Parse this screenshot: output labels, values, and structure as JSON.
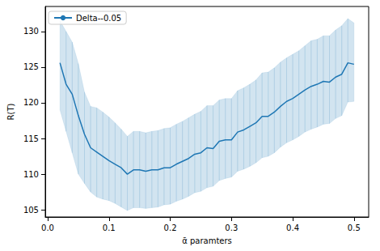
{
  "chart_data": {
    "type": "line",
    "x_label": "ᾱ paramters",
    "y_label": "R(T)",
    "x": [
      0.02,
      0.03,
      0.04,
      0.05,
      0.06,
      0.07,
      0.08,
      0.09,
      0.1,
      0.11,
      0.12,
      0.13,
      0.14,
      0.15,
      0.16,
      0.17,
      0.18,
      0.19,
      0.2,
      0.21,
      0.22,
      0.23,
      0.24,
      0.25,
      0.26,
      0.27,
      0.28,
      0.29,
      0.3,
      0.31,
      0.32,
      0.33,
      0.34,
      0.35,
      0.36,
      0.37,
      0.38,
      0.39,
      0.4,
      0.41,
      0.42,
      0.43,
      0.44,
      0.45,
      0.46,
      0.47,
      0.48,
      0.49,
      0.5
    ],
    "series": [
      {
        "name": "Delta--0.05",
        "color": "#1f77b4",
        "values": [
          125.6,
          122.6,
          121.2,
          118.2,
          115.6,
          113.7,
          113.1,
          112.5,
          111.9,
          111.4,
          110.9,
          110.0,
          110.6,
          110.6,
          110.4,
          110.6,
          110.6,
          110.9,
          110.9,
          111.4,
          111.8,
          112.2,
          112.8,
          113.0,
          113.7,
          113.6,
          114.6,
          114.8,
          114.8,
          115.9,
          116.2,
          116.7,
          117.2,
          118.1,
          118.1,
          118.7,
          119.5,
          120.2,
          120.6,
          121.2,
          121.8,
          122.3,
          122.6,
          123.0,
          122.9,
          123.6,
          124.0,
          125.6,
          125.4
        ],
        "lower": [
          119.0,
          116.0,
          113.0,
          110.0,
          108.7,
          107.5,
          106.8,
          106.5,
          106.3,
          105.9,
          105.4,
          104.9,
          105.3,
          105.3,
          105.2,
          105.3,
          105.4,
          105.7,
          105.8,
          106.2,
          106.5,
          106.9,
          107.4,
          107.6,
          108.1,
          108.3,
          109.1,
          109.4,
          109.6,
          110.4,
          110.7,
          111.1,
          111.6,
          112.3,
          112.5,
          113.0,
          113.8,
          114.4,
          114.8,
          115.3,
          115.9,
          116.3,
          116.6,
          117.0,
          117.1,
          117.8,
          118.2,
          120.1,
          120.2
        ],
        "upper": [
          131.5,
          130.0,
          128.5,
          125.5,
          121.5,
          119.5,
          119.3,
          118.7,
          118.0,
          117.2,
          116.3,
          115.3,
          116.0,
          116.0,
          115.8,
          116.0,
          116.1,
          116.4,
          116.5,
          117.0,
          117.4,
          117.9,
          118.4,
          118.8,
          119.6,
          119.6,
          120.4,
          120.6,
          120.6,
          121.7,
          122.1,
          122.6,
          123.2,
          124.2,
          124.3,
          124.9,
          125.7,
          126.3,
          126.8,
          127.3,
          128.0,
          128.7,
          128.9,
          129.4,
          129.4,
          130.2,
          130.8,
          131.8,
          131.2
        ]
      }
    ],
    "xlim": [
      -0.004,
      0.524
    ],
    "xticks": [
      {
        "value": 0,
        "label": "0.0"
      },
      0.1,
      0.2,
      0.3,
      0.4,
      0.5
    ],
    "ylim": [
      104,
      133.5
    ],
    "yticks": [
      105,
      110,
      115,
      120,
      125,
      130
    ],
    "grid": false,
    "legend": "upper left"
  }
}
